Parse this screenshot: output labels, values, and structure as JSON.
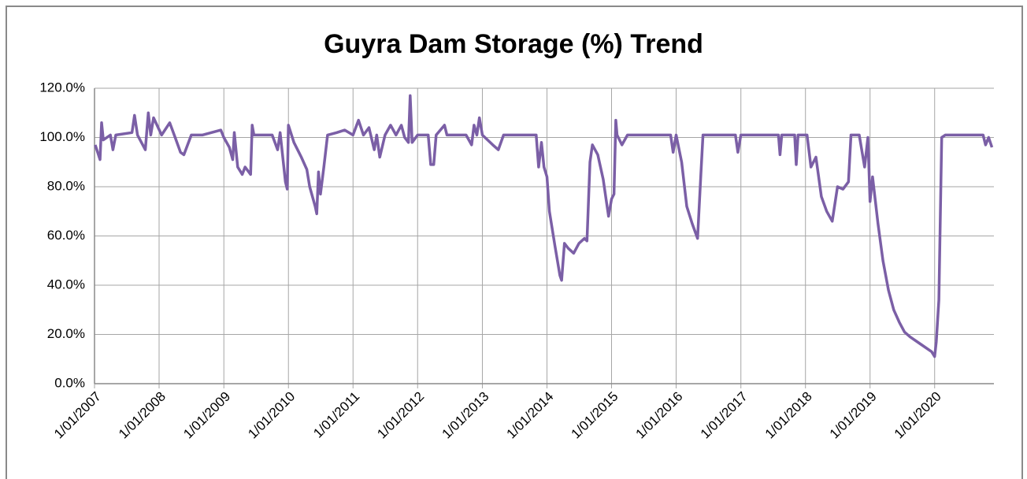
{
  "chart_data": {
    "type": "line",
    "title": "Guyra Dam Storage (%) Trend",
    "color": "#7b5fa6",
    "grid": true,
    "ylim": [
      0,
      120
    ],
    "yticks": [
      {
        "value": 0,
        "label": "0.0%"
      },
      {
        "value": 20,
        "label": "20.0%"
      },
      {
        "value": 40,
        "label": "40.0%"
      },
      {
        "value": 60,
        "label": "60.0%"
      },
      {
        "value": 80,
        "label": "80.0%"
      },
      {
        "value": 100,
        "label": "100.0%"
      },
      {
        "value": 120,
        "label": "120.0%"
      }
    ],
    "xlim": [
      "2007-01-01",
      "2020-12-01"
    ],
    "xticks": [
      {
        "value": "2007-01-01",
        "label": "1/01/2007"
      },
      {
        "value": "2008-01-01",
        "label": "1/01/2008"
      },
      {
        "value": "2009-01-01",
        "label": "1/01/2009"
      },
      {
        "value": "2010-01-01",
        "label": "1/01/2010"
      },
      {
        "value": "2011-01-01",
        "label": "1/01/2011"
      },
      {
        "value": "2012-01-01",
        "label": "1/01/2012"
      },
      {
        "value": "2013-01-01",
        "label": "1/01/2013"
      },
      {
        "value": "2014-01-01",
        "label": "1/01/2014"
      },
      {
        "value": "2015-01-01",
        "label": "1/01/2015"
      },
      {
        "value": "2016-01-01",
        "label": "1/01/2016"
      },
      {
        "value": "2017-01-01",
        "label": "1/01/2017"
      },
      {
        "value": "2018-01-01",
        "label": "1/01/2018"
      },
      {
        "value": "2019-01-01",
        "label": "1/01/2019"
      },
      {
        "value": "2020-01-01",
        "label": "1/01/2020"
      }
    ],
    "x": [
      "2007-01-05",
      "2007-02-01",
      "2007-02-10",
      "2007-02-20",
      "2007-04-01",
      "2007-04-15",
      "2007-05-01",
      "2007-08-01",
      "2007-08-15",
      "2007-09-01",
      "2007-10-15",
      "2007-11-01",
      "2007-11-15",
      "2007-12-01",
      "2008-01-15",
      "2008-03-01",
      "2008-04-01",
      "2008-05-01",
      "2008-05-20",
      "2008-07-01",
      "2008-09-01",
      "2008-12-15",
      "2009-01-01",
      "2009-02-01",
      "2009-02-20",
      "2009-03-01",
      "2009-03-20",
      "2009-04-15",
      "2009-05-01",
      "2009-06-01",
      "2009-06-10",
      "2009-06-20",
      "2009-10-01",
      "2009-11-01",
      "2009-11-15",
      "2009-12-15",
      "2009-12-25",
      "2010-01-01",
      "2010-02-01",
      "2010-03-15",
      "2010-04-15",
      "2010-05-01",
      "2010-06-01",
      "2010-06-10",
      "2010-06-20",
      "2010-07-01",
      "2010-07-20",
      "2010-08-10",
      "2010-10-01",
      "2010-11-15",
      "2011-01-01",
      "2011-02-01",
      "2011-03-01",
      "2011-04-01",
      "2011-05-01",
      "2011-05-15",
      "2011-06-01",
      "2011-07-01",
      "2011-08-01",
      "2011-09-01",
      "2011-10-01",
      "2011-10-20",
      "2011-11-10",
      "2011-11-20",
      "2011-12-01",
      "2012-01-01",
      "2012-03-01",
      "2012-03-15",
      "2012-04-01",
      "2012-04-15",
      "2012-06-01",
      "2012-06-15",
      "2012-10-01",
      "2012-11-01",
      "2012-11-15",
      "2012-12-01",
      "2012-12-15",
      "2013-01-01",
      "2013-03-01",
      "2013-04-01",
      "2013-05-01",
      "2013-09-01",
      "2013-11-01",
      "2013-11-15",
      "2013-12-01",
      "2013-12-15",
      "2014-01-01",
      "2014-01-15",
      "2014-02-15",
      "2014-03-15",
      "2014-03-25",
      "2014-04-10",
      "2014-05-01",
      "2014-06-01",
      "2014-07-01",
      "2014-08-01",
      "2014-08-15",
      "2014-09-01",
      "2014-09-15",
      "2014-10-15",
      "2014-11-15",
      "2014-12-01",
      "2014-12-15",
      "2015-01-01",
      "2015-01-15",
      "2015-01-25",
      "2015-02-01",
      "2015-03-01",
      "2015-04-01",
      "2015-12-01",
      "2015-12-15",
      "2016-01-01",
      "2016-02-01",
      "2016-03-01",
      "2016-04-01",
      "2016-05-01",
      "2016-05-20",
      "2016-06-01",
      "2016-12-01",
      "2016-12-15",
      "2017-01-01",
      "2017-08-01",
      "2017-08-10",
      "2017-08-20",
      "2017-11-01",
      "2017-11-10",
      "2017-11-20",
      "2018-01-10",
      "2018-02-01",
      "2018-03-01",
      "2018-04-01",
      "2018-05-01",
      "2018-06-01",
      "2018-07-01",
      "2018-08-01",
      "2018-09-01",
      "2018-09-15",
      "2018-11-01",
      "2018-12-01",
      "2018-12-20",
      "2019-01-01",
      "2019-01-15",
      "2019-02-15",
      "2019-03-15",
      "2019-04-15",
      "2019-05-15",
      "2019-06-15",
      "2019-07-15",
      "2019-08-15",
      "2019-10-15",
      "2019-12-15",
      "2020-01-01",
      "2020-01-10",
      "2020-01-25",
      "2020-02-10",
      "2020-03-01",
      "2020-10-01",
      "2020-10-15",
      "2020-11-01",
      "2020-11-20"
    ],
    "values": [
      97,
      91,
      106,
      99,
      101,
      95,
      101,
      102,
      109,
      101,
      95,
      110,
      101,
      108,
      101,
      106,
      100,
      94,
      93,
      101,
      101,
      103,
      100,
      96,
      91,
      102,
      88,
      85,
      88,
      85,
      105,
      101,
      101,
      95,
      102,
      82,
      79,
      105,
      98,
      92,
      87,
      80,
      72,
      69,
      86,
      77,
      88,
      101,
      102,
      103,
      101,
      107,
      101,
      104,
      95,
      101,
      92,
      101,
      105,
      101,
      105,
      100,
      98,
      117,
      98,
      101,
      101,
      89,
      89,
      101,
      105,
      101,
      101,
      97,
      105,
      101,
      108,
      101,
      97,
      95,
      101,
      101,
      101,
      88,
      98,
      88,
      84,
      70,
      56,
      44,
      42,
      57,
      55,
      53,
      57,
      59,
      58,
      90,
      97,
      93,
      83,
      75,
      68,
      75,
      77,
      107,
      101,
      97,
      101,
      101,
      94,
      101,
      90,
      72,
      65,
      59,
      85,
      101,
      101,
      94,
      101,
      101,
      93,
      101,
      101,
      89,
      101,
      101,
      88,
      92,
      76,
      70,
      66,
      80,
      79,
      82,
      101,
      101,
      88,
      100,
      74,
      84,
      65,
      50,
      38,
      30,
      25,
      21,
      19,
      16,
      13,
      11,
      17,
      34,
      100,
      101,
      101,
      97,
      100,
      96
    ]
  }
}
